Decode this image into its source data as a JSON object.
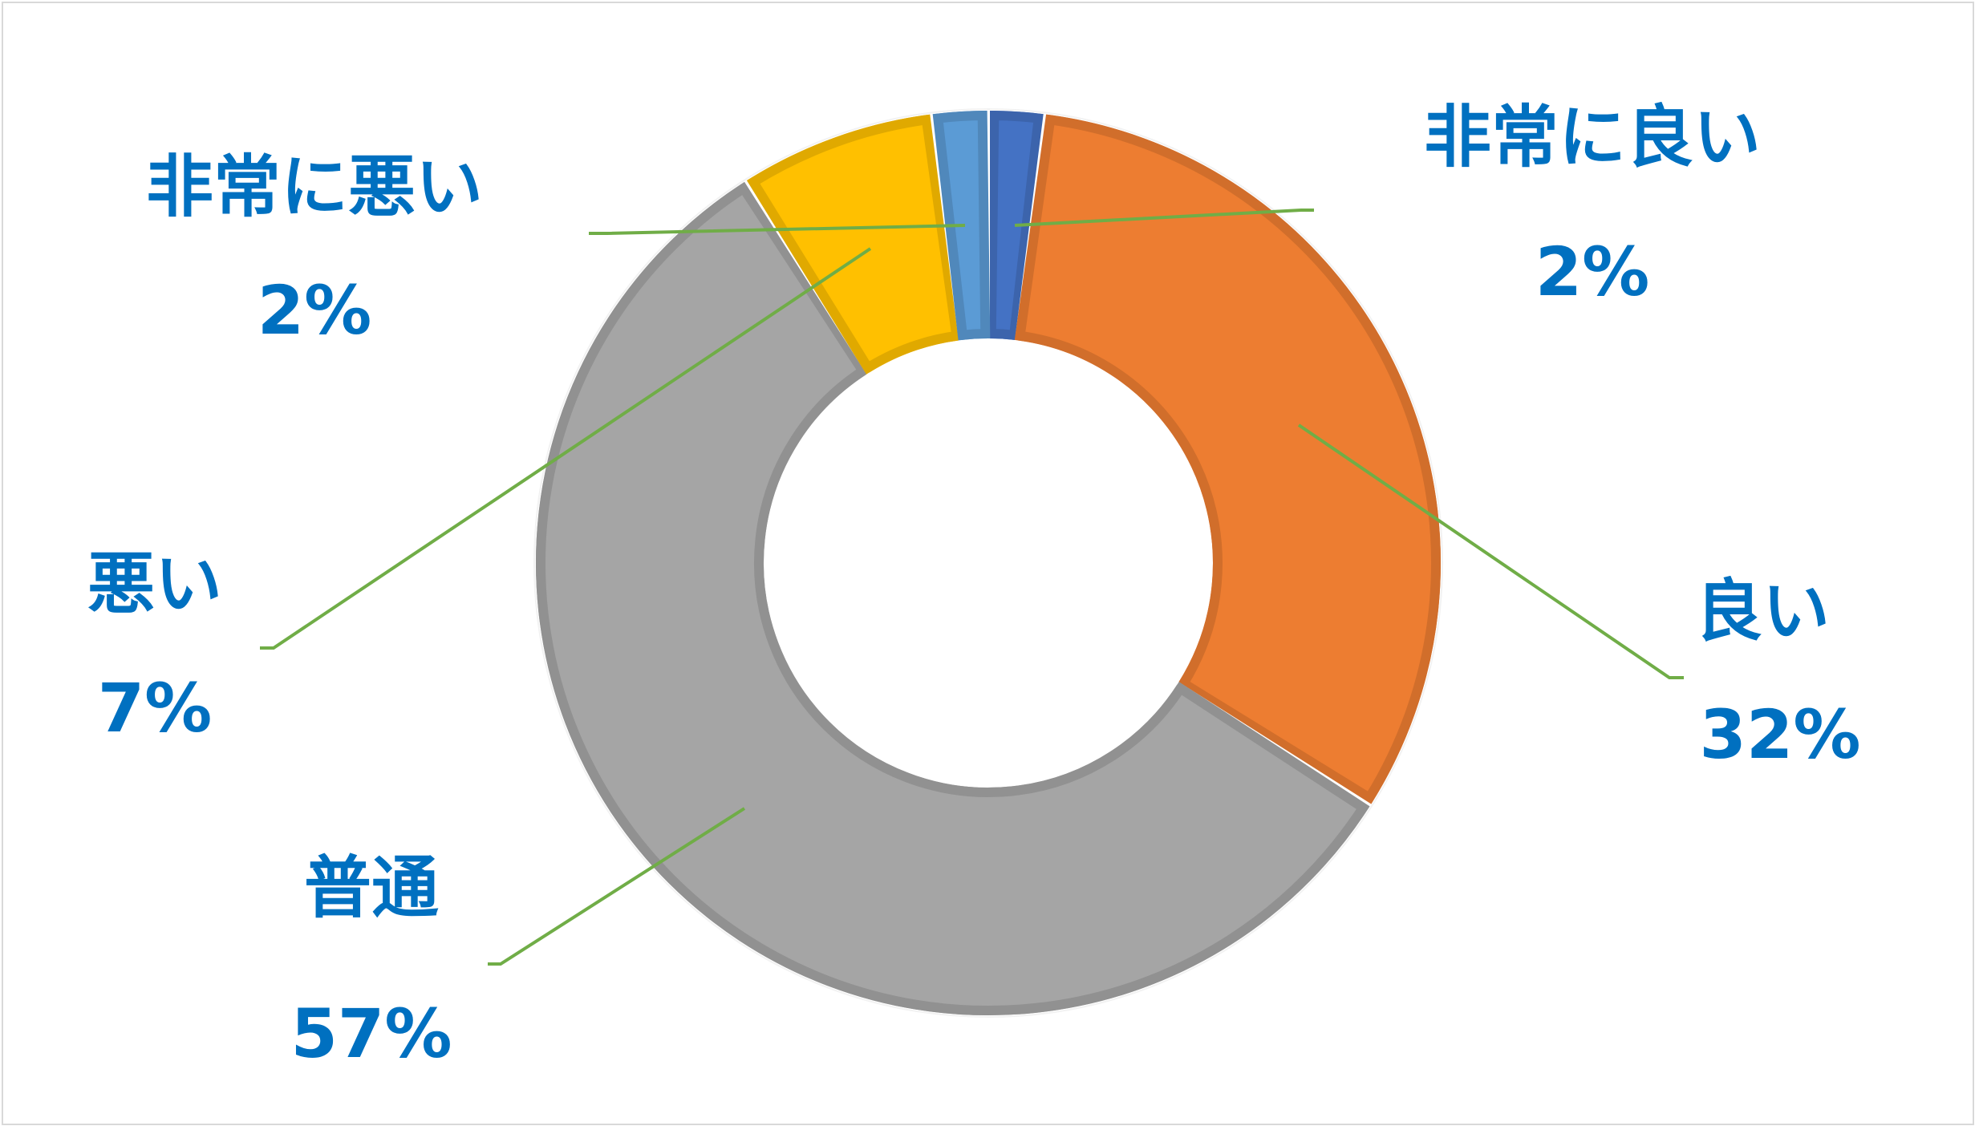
{
  "chart_data": {
    "type": "pie",
    "variant": "doughnut",
    "title": "",
    "legend": "none",
    "label_color": "#0070C0",
    "leader_line_color": "#70AD47",
    "slices": [
      {
        "label": "非常に良い",
        "value": 2,
        "percent_label": "2%",
        "color": "#4472C4"
      },
      {
        "label": "良い",
        "value": 32,
        "percent_label": "32%",
        "color": "#ED7D31"
      },
      {
        "label": "普通",
        "value": 57,
        "percent_label": "57%",
        "color": "#A5A5A5"
      },
      {
        "label": "悪い",
        "value": 7,
        "percent_label": "7%",
        "color": "#FFC000"
      },
      {
        "label": "非常に悪い",
        "value": 2,
        "percent_label": "2%",
        "color": "#5B9BD5"
      }
    ]
  }
}
